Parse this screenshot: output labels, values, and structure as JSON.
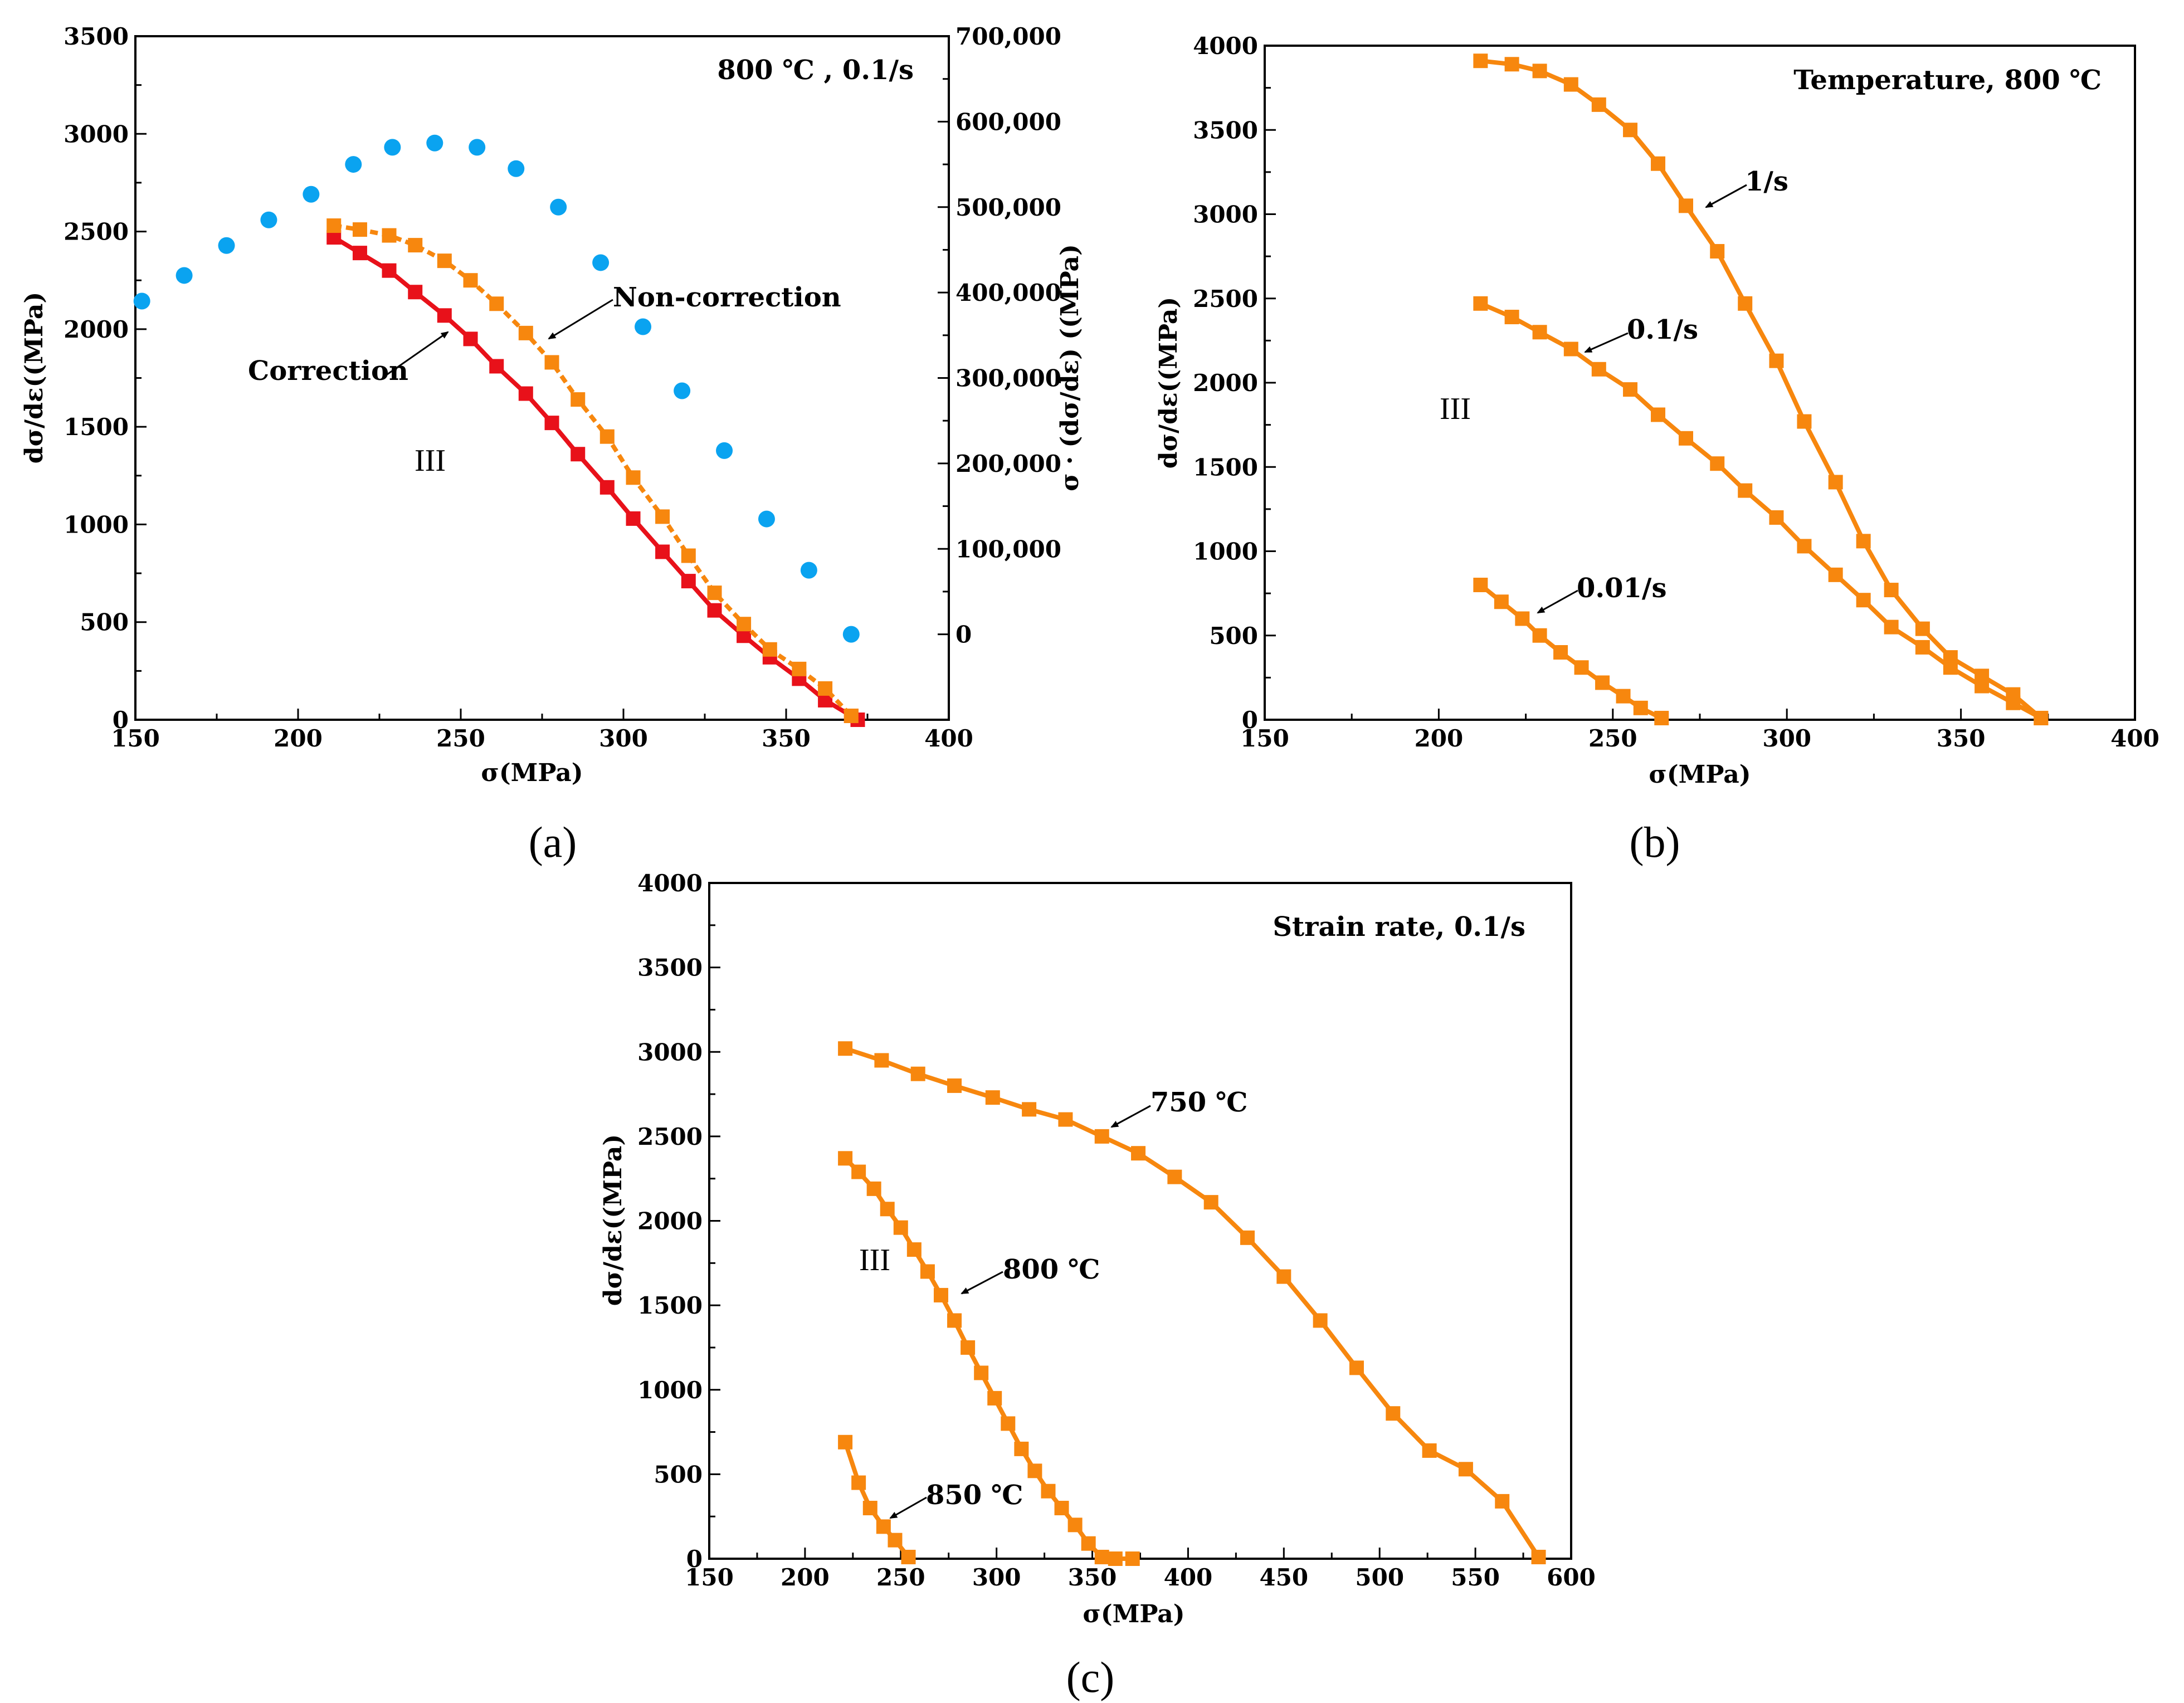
{
  "colors": {
    "orange": "#F7870E",
    "red": "#E8111A",
    "blue": "#0AA3F0",
    "axis": "#000000"
  },
  "chart_data": [
    {
      "type": "line",
      "panel_label": "(a)",
      "annotation": "800 ℃ , 0.1/s",
      "xlabel": "σ(MPa)",
      "ylabel": "dσ/dε((MPa)",
      "y2label": "σ · (dσ/dε) ((MPa)",
      "xlim": [
        150,
        400
      ],
      "ylim": [
        0,
        3500
      ],
      "y2lim": [
        -100000,
        700000
      ],
      "xticks": [
        150,
        200,
        250,
        300,
        350,
        400
      ],
      "yticks": [
        0,
        500,
        1000,
        1500,
        2000,
        2500,
        3000,
        3500
      ],
      "y2ticks": [
        0,
        100000,
        200000,
        300000,
        400000,
        500000,
        600000,
        700000
      ],
      "y2ticklabels": [
        "0",
        "100,000",
        "200,000",
        "300,000",
        "400,000",
        "500,000",
        "600,000",
        "700,000"
      ],
      "region_label": "III",
      "series": [
        {
          "name": "Correction",
          "color": "red",
          "marker": "square",
          "dashed": false,
          "x": [
            211,
            219,
            228,
            236,
            245,
            253,
            261,
            270,
            278,
            286,
            295,
            303,
            312,
            320,
            328,
            337,
            345,
            354,
            362,
            370,
            372
          ],
          "y": [
            2470,
            2390,
            2300,
            2190,
            2070,
            1950,
            1810,
            1670,
            1520,
            1360,
            1190,
            1030,
            860,
            710,
            560,
            430,
            320,
            210,
            100,
            20,
            0
          ]
        },
        {
          "name": "Non-correction",
          "color": "orange",
          "marker": "square",
          "dashed": true,
          "x": [
            211,
            219,
            228,
            236,
            245,
            253,
            261,
            270,
            278,
            286,
            295,
            303,
            312,
            320,
            328,
            337,
            345,
            354,
            362,
            370
          ],
          "y": [
            2530,
            2510,
            2480,
            2430,
            2350,
            2250,
            2130,
            1980,
            1830,
            1640,
            1450,
            1240,
            1040,
            840,
            650,
            490,
            360,
            260,
            160,
            20
          ]
        },
        {
          "name": "σ·(dσ/dε)",
          "axis": "y2",
          "color": "blue",
          "marker": "circle",
          "dashed": false,
          "x": [
            152,
            165,
            178,
            191,
            204,
            217,
            229,
            242,
            255,
            267,
            280,
            293,
            306,
            318,
            331,
            344,
            357,
            370
          ],
          "y": [
            390000,
            420000,
            455000,
            485000,
            515000,
            550000,
            570000,
            575000,
            570000,
            545000,
            500000,
            435000,
            360000,
            285000,
            215000,
            135000,
            75000,
            0
          ]
        }
      ],
      "labels": {
        "correction": "Correction",
        "noncorrection": "Non-correction"
      }
    },
    {
      "type": "line",
      "panel_label": "(b)",
      "annotation": "Temperature, 800 ℃",
      "xlabel": "σ(MPa)",
      "ylabel": "dσ/dε((MPa)",
      "xlim": [
        150,
        400
      ],
      "ylim": [
        0,
        4000
      ],
      "xticks": [
        150,
        200,
        250,
        300,
        350,
        400
      ],
      "yticks": [
        0,
        500,
        1000,
        1500,
        2000,
        2500,
        3000,
        3500,
        4000
      ],
      "region_label": "III",
      "series": [
        {
          "name": "1/s",
          "color": "orange",
          "marker": "square",
          "x": [
            212,
            221,
            229,
            238,
            246,
            255,
            263,
            271,
            280,
            288,
            297,
            305,
            314,
            322,
            330,
            339,
            347,
            356,
            365,
            373
          ],
          "y": [
            3910,
            3890,
            3850,
            3770,
            3650,
            3500,
            3300,
            3050,
            2780,
            2470,
            2130,
            1770,
            1410,
            1060,
            770,
            540,
            370,
            260,
            150,
            10
          ]
        },
        {
          "name": "0.1/s",
          "color": "orange",
          "marker": "square",
          "x": [
            212,
            221,
            229,
            238,
            246,
            255,
            263,
            271,
            280,
            288,
            297,
            305,
            314,
            322,
            330,
            339,
            347,
            356,
            365,
            373
          ],
          "y": [
            2470,
            2390,
            2300,
            2200,
            2080,
            1960,
            1810,
            1670,
            1520,
            1360,
            1200,
            1030,
            860,
            710,
            550,
            430,
            310,
            200,
            100,
            10
          ]
        },
        {
          "name": "0.01/s",
          "color": "orange",
          "marker": "square",
          "x": [
            212,
            218,
            224,
            229,
            235,
            241,
            247,
            253,
            258,
            264
          ],
          "y": [
            800,
            700,
            600,
            500,
            400,
            310,
            220,
            140,
            70,
            10
          ]
        }
      ]
    },
    {
      "type": "line",
      "panel_label": "(c)",
      "annotation": "Strain rate, 0.1/s",
      "xlabel": "σ(MPa)",
      "ylabel": "dσ/dε((MPa)",
      "xlim": [
        150,
        600
      ],
      "ylim": [
        0,
        4000
      ],
      "xticks": [
        150,
        200,
        250,
        300,
        350,
        400,
        450,
        500,
        550,
        600
      ],
      "yticks": [
        0,
        500,
        1000,
        1500,
        2000,
        2500,
        3000,
        3500,
        4000
      ],
      "region_label": "III",
      "series": [
        {
          "name": "750 ℃",
          "color": "orange",
          "marker": "square",
          "x": [
            221,
            240,
            259,
            278,
            298,
            317,
            336,
            355,
            374,
            393,
            412,
            431,
            450,
            469,
            488,
            507,
            526,
            545,
            564,
            583
          ],
          "y": [
            3020,
            2950,
            2870,
            2800,
            2730,
            2660,
            2600,
            2500,
            2400,
            2260,
            2110,
            1900,
            1670,
            1410,
            1130,
            860,
            640,
            530,
            340,
            10
          ]
        },
        {
          "name": "800 ℃",
          "color": "orange",
          "marker": "square",
          "x": [
            221,
            228,
            236,
            243,
            250,
            257,
            264,
            271,
            278,
            285,
            292,
            299,
            306,
            313,
            320,
            327,
            334,
            341,
            348,
            355,
            362,
            371
          ],
          "y": [
            2370,
            2290,
            2190,
            2070,
            1960,
            1830,
            1700,
            1560,
            1410,
            1250,
            1100,
            950,
            800,
            650,
            520,
            400,
            300,
            200,
            90,
            10,
            0,
            0
          ]
        },
        {
          "name": "850 ℃",
          "color": "orange",
          "marker": "square",
          "x": [
            221,
            228,
            234,
            241,
            247,
            254
          ],
          "y": [
            690,
            450,
            300,
            190,
            110,
            10
          ]
        }
      ]
    }
  ]
}
